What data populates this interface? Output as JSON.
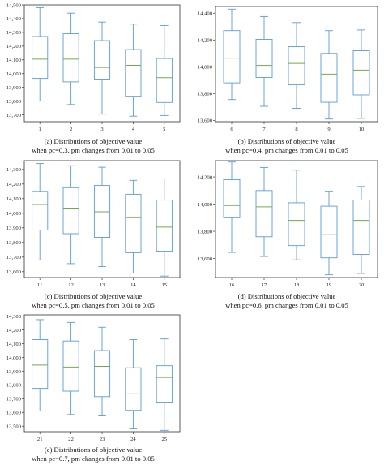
{
  "colors": {
    "box": "#5b9bd5",
    "median": "#70ad47",
    "axis": "#333333"
  },
  "chart_data": [
    {
      "type": "box",
      "caption_line1": "(a) Distributions of objective value",
      "caption_line2": "when pc=0.3, pm changes from 0.01 to 0.05",
      "categories": [
        "1",
        "2",
        "3",
        "4",
        "5"
      ],
      "ylim": [
        13650,
        14500
      ],
      "yticks": [
        13700,
        13800,
        13900,
        14000,
        14100,
        14200,
        14300,
        14400,
        14500
      ],
      "ytick_labels": [
        "13,700",
        "13,800",
        "13,900",
        "14,000",
        "14,100",
        "14,200",
        "14,300",
        "14,400",
        "14,500"
      ],
      "boxes": [
        {
          "min": 13800,
          "q1": 13965,
          "median": 14105,
          "q3": 14270,
          "max": 14480
        },
        {
          "min": 13775,
          "q1": 13940,
          "median": 14105,
          "q3": 14290,
          "max": 14440
        },
        {
          "min": 13705,
          "q1": 13960,
          "median": 14045,
          "q3": 14240,
          "max": 14375
        },
        {
          "min": 13690,
          "q1": 13835,
          "median": 14060,
          "q3": 14175,
          "max": 14360
        },
        {
          "min": 13695,
          "q1": 13790,
          "median": 13970,
          "q3": 14110,
          "max": 14350
        }
      ]
    },
    {
      "type": "box",
      "caption_line1": "(b) Distributions of objective value",
      "caption_line2": "when pc=0.4, pm changes from 0.01 to 0.05",
      "categories": [
        "6",
        "7",
        "8",
        "9",
        "10"
      ],
      "ylim": [
        13590,
        14450
      ],
      "yticks": [
        13600,
        13800,
        14000,
        14200,
        14400
      ],
      "ytick_labels": [
        "13,600",
        "13,800",
        "14,000",
        "14,200",
        "14,400"
      ],
      "boxes": [
        {
          "min": 13755,
          "q1": 13880,
          "median": 14065,
          "q3": 14270,
          "max": 14430
        },
        {
          "min": 13705,
          "q1": 13920,
          "median": 14010,
          "q3": 14205,
          "max": 14375
        },
        {
          "min": 13690,
          "q1": 13865,
          "median": 14025,
          "q3": 14150,
          "max": 14330
        },
        {
          "min": 13610,
          "q1": 13735,
          "median": 13945,
          "q3": 14100,
          "max": 14270
        },
        {
          "min": 13615,
          "q1": 13790,
          "median": 13975,
          "q3": 14120,
          "max": 14275
        }
      ]
    },
    {
      "type": "box",
      "caption_line1": "(c) Distributions of objective value",
      "caption_line2": "when pc=0.5, pm changes from 0.01 to 0.05",
      "categories": [
        "11",
        "12",
        "13",
        "14",
        "15"
      ],
      "ylim": [
        13560,
        14360
      ],
      "yticks": [
        13600,
        13700,
        13800,
        13900,
        14000,
        14100,
        14200,
        14300
      ],
      "ytick_labels": [
        "13,600",
        "13,700",
        "13,800",
        "13,900",
        "14,000",
        "14,100",
        "14,200",
        "14,300"
      ],
      "boxes": [
        {
          "min": 13680,
          "q1": 13885,
          "median": 14060,
          "q3": 14150,
          "max": 14340
        },
        {
          "min": 13655,
          "q1": 13860,
          "median": 14035,
          "q3": 14175,
          "max": 14325
        },
        {
          "min": 13635,
          "q1": 13835,
          "median": 14010,
          "q3": 14190,
          "max": 14315
        },
        {
          "min": 13590,
          "q1": 13730,
          "median": 13970,
          "q3": 14130,
          "max": 14225
        },
        {
          "min": 13570,
          "q1": 13740,
          "median": 13905,
          "q3": 14090,
          "max": 14235
        }
      ]
    },
    {
      "type": "box",
      "caption_line1": "(d) Distributions of objective value",
      "caption_line2": "when pc=0.6, pm changes from 0.01 to 0.05",
      "categories": [
        "16",
        "17",
        "18",
        "19",
        "20"
      ],
      "ylim": [
        13460,
        14320
      ],
      "yticks": [
        13600,
        13800,
        14000,
        14200
      ],
      "ytick_labels": [
        "13,600",
        "13,800",
        "14,000",
        "14,200"
      ],
      "boxes": [
        {
          "min": 13645,
          "q1": 13900,
          "median": 13990,
          "q3": 14180,
          "max": 14310
        },
        {
          "min": 13615,
          "q1": 13760,
          "median": 13980,
          "q3": 14100,
          "max": 14270
        },
        {
          "min": 13590,
          "q1": 13695,
          "median": 13880,
          "q3": 14010,
          "max": 14250
        },
        {
          "min": 13480,
          "q1": 13605,
          "median": 13775,
          "q3": 13985,
          "max": 14095
        },
        {
          "min": 13490,
          "q1": 13630,
          "median": 13880,
          "q3": 14030,
          "max": 14130
        }
      ]
    },
    {
      "type": "box",
      "caption_line1": "(e) Distributions of objective value",
      "caption_line2": "when pc=0.7, pm changes from 0.01 to 0.05",
      "categories": [
        "21",
        "22",
        "23",
        "24",
        "25"
      ],
      "ylim": [
        13460,
        14310
      ],
      "yticks": [
        13500,
        13600,
        13700,
        13800,
        13900,
        14000,
        14100,
        14200,
        14300
      ],
      "ytick_labels": [
        "13,500",
        "13,600",
        "13,700",
        "13,800",
        "13,900",
        "14,000",
        "14,100",
        "14,200",
        "14,300"
      ],
      "boxes": [
        {
          "min": 13610,
          "q1": 13775,
          "median": 13945,
          "q3": 14130,
          "max": 14275
        },
        {
          "min": 13585,
          "q1": 13755,
          "median": 13930,
          "q3": 14120,
          "max": 14255
        },
        {
          "min": 13575,
          "q1": 13715,
          "median": 13935,
          "q3": 14050,
          "max": 14220
        },
        {
          "min": 13480,
          "q1": 13615,
          "median": 13735,
          "q3": 13925,
          "max": 14130
        },
        {
          "min": 13470,
          "q1": 13675,
          "median": 13855,
          "q3": 13940,
          "max": 14135
        }
      ]
    }
  ]
}
